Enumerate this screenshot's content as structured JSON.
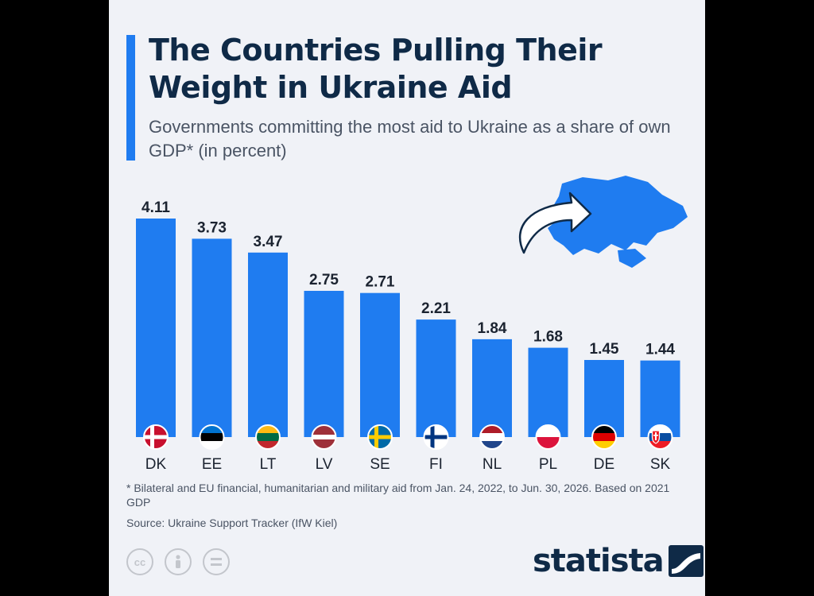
{
  "header": {
    "title": "The Countries Pulling Their Weight in Ukraine Aid",
    "subtitle": "Governments committing the most aid to Ukraine as a share of own GDP* (in percent)"
  },
  "chart_data": {
    "type": "bar",
    "title": "The Countries Pulling Their Weight in Ukraine Aid",
    "subtitle": "Governments committing the most aid to Ukraine as a share of own GDP* (in percent)",
    "categories": [
      "DK",
      "EE",
      "LT",
      "LV",
      "SE",
      "FI",
      "NL",
      "PL",
      "DE",
      "SK"
    ],
    "values": [
      4.11,
      3.73,
      3.47,
      2.75,
      2.71,
      2.21,
      1.84,
      1.68,
      1.45,
      1.44
    ],
    "value_labels": [
      "4.11",
      "3.73",
      "3.47",
      "2.75",
      "2.71",
      "2.21",
      "1.84",
      "1.68",
      "1.45",
      "1.44"
    ],
    "xlabel": "",
    "ylabel": "",
    "ylim": [
      0,
      4.11
    ],
    "grid": false,
    "legend": "none",
    "bar_color": "#1f7cf0",
    "flag_icons": [
      "denmark-flag-icon",
      "estonia-flag-icon",
      "lithuania-flag-icon",
      "latvia-flag-icon",
      "sweden-flag-icon",
      "finland-flag-icon",
      "netherlands-flag-icon",
      "poland-flag-icon",
      "germany-flag-icon",
      "slovakia-flag-icon"
    ]
  },
  "decoration": {
    "map_icon": "ukraine-map-icon",
    "arrow_icon": "curved-arrow-icon"
  },
  "footer": {
    "footnote": "* Bilateral and EU financial, humanitarian and military aid from Jan. 24, 2022, to Jun. 30, 2026. Based on 2021 GDP",
    "source": "Source: Ukraine Support Tracker (IfW Kiel)",
    "license_icons": [
      "creative-commons-icon",
      "attribution-icon",
      "no-derivatives-icon"
    ],
    "brand": "statista"
  },
  "colors": {
    "accent": "#1f7cf0",
    "title": "#0f2a47",
    "text": "#4a5464",
    "background": "#f0f2f7"
  }
}
